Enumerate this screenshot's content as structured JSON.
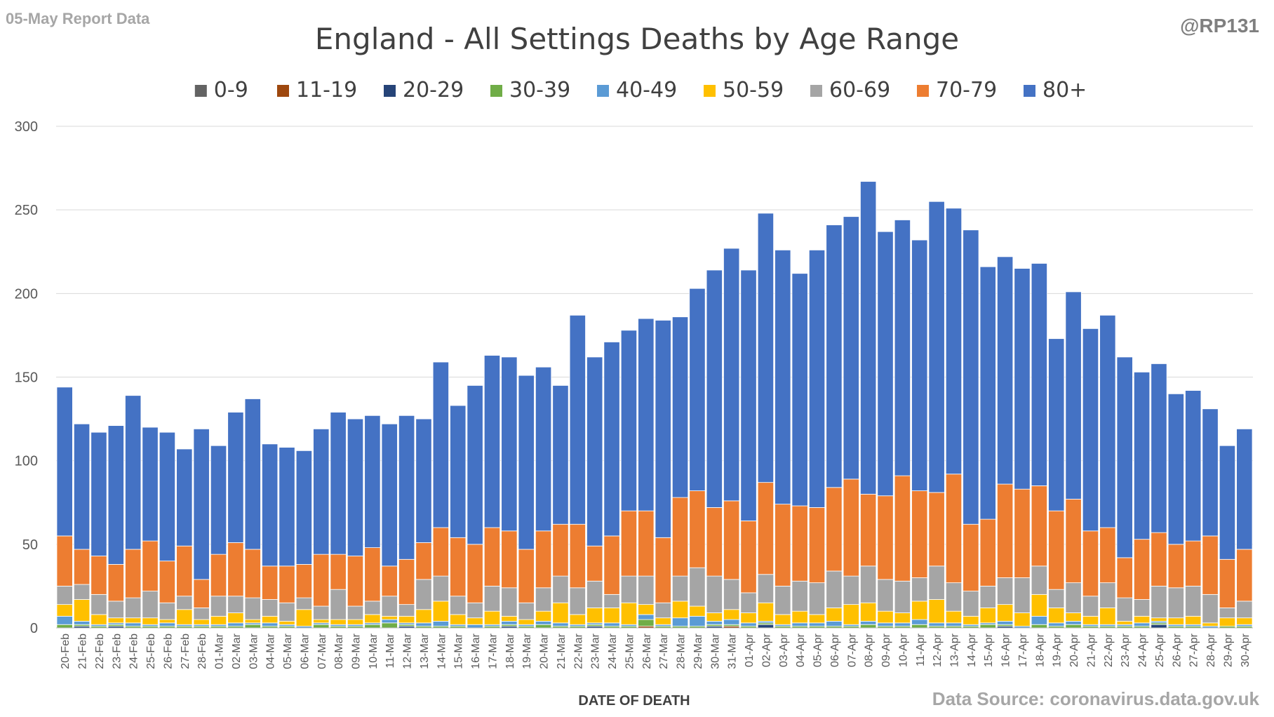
{
  "header": {
    "report_label": "05-May Report Data",
    "author_handle": "@RP131",
    "source": "Data Source: coronavirus.data.gov.uk"
  },
  "chart_data": {
    "type": "bar",
    "stacked": true,
    "title": "England - All Settings Deaths by Age Range",
    "xlabel": "DATE OF DEATH",
    "ylabel": "",
    "ylim": [
      0,
      300
    ],
    "yticks": [
      0,
      50,
      100,
      150,
      200,
      250,
      300
    ],
    "grid": true,
    "legend_position": "top",
    "categories": [
      "20-Feb",
      "21-Feb",
      "22-Feb",
      "23-Feb",
      "24-Feb",
      "25-Feb",
      "26-Feb",
      "27-Feb",
      "28-Feb",
      "01-Mar",
      "02-Mar",
      "03-Mar",
      "04-Mar",
      "05-Mar",
      "06-Mar",
      "07-Mar",
      "08-Mar",
      "09-Mar",
      "10-Mar",
      "11-Mar",
      "12-Mar",
      "13-Mar",
      "14-Mar",
      "15-Mar",
      "16-Mar",
      "17-Mar",
      "18-Mar",
      "19-Mar",
      "20-Mar",
      "21-Mar",
      "22-Mar",
      "23-Mar",
      "24-Mar",
      "25-Mar",
      "26-Mar",
      "27-Mar",
      "28-Mar",
      "29-Mar",
      "30-Mar",
      "31-Mar",
      "01-Apr",
      "02-Apr",
      "03-Apr",
      "04-Apr",
      "05-Apr",
      "06-Apr",
      "07-Apr",
      "08-Apr",
      "09-Apr",
      "10-Apr",
      "11-Apr",
      "12-Apr",
      "13-Apr",
      "14-Apr",
      "15-Apr",
      "16-Apr",
      "17-Apr",
      "18-Apr",
      "19-Apr",
      "20-Apr",
      "21-Apr",
      "22-Apr",
      "23-Apr",
      "24-Apr",
      "25-Apr",
      "26-Apr",
      "27-Apr",
      "28-Apr",
      "29-Apr",
      "30-Apr"
    ],
    "series": [
      {
        "name": "0-9",
        "color": "#636363",
        "values": [
          0,
          0,
          0,
          0,
          0,
          0,
          0,
          0,
          0,
          0,
          0,
          0,
          0,
          0,
          0,
          0,
          0,
          0,
          0,
          0,
          0,
          0,
          0,
          0,
          0,
          0,
          0,
          0,
          0,
          0,
          0,
          0,
          0,
          0,
          0,
          0,
          0,
          0,
          0,
          0,
          0,
          0,
          0,
          0,
          0,
          0,
          0,
          0,
          0,
          0,
          0,
          0,
          0,
          0,
          0,
          0,
          0,
          0,
          0,
          0,
          0,
          0,
          0,
          0,
          0,
          0,
          0,
          0,
          0,
          0
        ]
      },
      {
        "name": "11-19",
        "color": "#9E480E",
        "values": [
          0,
          0,
          0,
          0,
          0,
          0,
          0,
          0,
          0,
          0,
          0,
          0,
          0,
          0,
          0,
          0,
          0,
          0,
          0,
          0,
          0,
          0,
          0,
          0,
          0,
          0,
          0,
          0,
          0,
          0,
          0,
          0,
          0,
          0,
          1,
          0,
          0,
          0,
          0,
          1,
          0,
          0,
          0,
          0,
          0,
          0,
          0,
          0,
          0,
          0,
          0,
          0,
          0,
          0,
          0,
          0,
          0,
          0,
          0,
          0,
          0,
          0,
          0,
          0,
          0,
          0,
          0,
          0,
          0,
          0
        ]
      },
      {
        "name": "20-29",
        "color": "#264478",
        "values": [
          0,
          1,
          0,
          1,
          0,
          0,
          0,
          0,
          0,
          0,
          0,
          0,
          0,
          0,
          0,
          0,
          0,
          0,
          0,
          0,
          1,
          0,
          0,
          0,
          0,
          0,
          1,
          0,
          0,
          0,
          0,
          1,
          0,
          0,
          0,
          0,
          0,
          0,
          1,
          0,
          0,
          2,
          0,
          0,
          0,
          0,
          0,
          0,
          0,
          0,
          0,
          0,
          0,
          0,
          0,
          1,
          0,
          0,
          0,
          0,
          0,
          0,
          0,
          0,
          2,
          0,
          0,
          0,
          0,
          0
        ]
      },
      {
        "name": "30-39",
        "color": "#70AD47",
        "values": [
          2,
          1,
          1,
          1,
          1,
          1,
          1,
          1,
          1,
          1,
          1,
          2,
          1,
          1,
          0,
          2,
          1,
          1,
          2,
          3,
          1,
          1,
          1,
          1,
          0,
          1,
          1,
          1,
          2,
          1,
          1,
          1,
          1,
          1,
          4,
          1,
          1,
          1,
          1,
          1,
          1,
          1,
          1,
          1,
          1,
          1,
          1,
          2,
          1,
          1,
          2,
          1,
          1,
          1,
          2,
          1,
          0,
          2,
          1,
          2,
          1,
          1,
          1,
          1,
          1,
          1,
          1,
          0,
          1,
          1
        ]
      },
      {
        "name": "40-49",
        "color": "#5B9BD5",
        "values": [
          5,
          2,
          1,
          1,
          2,
          1,
          2,
          1,
          1,
          1,
          2,
          1,
          2,
          1,
          1,
          1,
          1,
          1,
          1,
          2,
          1,
          2,
          3,
          1,
          2,
          1,
          2,
          1,
          2,
          2,
          1,
          1,
          2,
          1,
          3,
          1,
          5,
          6,
          2,
          3,
          2,
          1,
          1,
          2,
          2,
          3,
          1,
          2,
          2,
          2,
          3,
          2,
          2,
          1,
          1,
          2,
          1,
          5,
          2,
          2,
          1,
          1,
          1,
          2,
          1,
          1,
          1,
          1,
          0,
          1
        ]
      },
      {
        "name": "50-59",
        "color": "#FFC000",
        "values": [
          7,
          13,
          6,
          3,
          3,
          4,
          2,
          9,
          3,
          5,
          6,
          2,
          4,
          2,
          10,
          2,
          3,
          3,
          5,
          2,
          4,
          8,
          12,
          6,
          4,
          8,
          3,
          3,
          6,
          12,
          6,
          9,
          9,
          13,
          6,
          4,
          10,
          6,
          5,
          6,
          6,
          11,
          6,
          7,
          5,
          8,
          12,
          11,
          7,
          6,
          11,
          14,
          7,
          5,
          9,
          10,
          8,
          13,
          9,
          5,
          5,
          10,
          2,
          4,
          2,
          4,
          5,
          2,
          5,
          4
        ]
      },
      {
        "name": "60-69",
        "color": "#A5A5A5",
        "values": [
          11,
          9,
          12,
          10,
          12,
          16,
          10,
          8,
          7,
          12,
          10,
          13,
          10,
          11,
          7,
          8,
          18,
          8,
          8,
          12,
          7,
          18,
          15,
          11,
          9,
          15,
          17,
          10,
          14,
          16,
          16,
          16,
          8,
          16,
          17,
          9,
          15,
          23,
          22,
          18,
          12,
          17,
          17,
          18,
          19,
          22,
          17,
          22,
          19,
          19,
          14,
          20,
          17,
          15,
          13,
          16,
          21,
          17,
          11,
          18,
          12,
          15,
          14,
          10,
          19,
          18,
          18,
          17,
          6,
          10
        ]
      },
      {
        "name": "70-79",
        "color": "#ED7D31",
        "values": [
          30,
          21,
          23,
          22,
          29,
          30,
          25,
          30,
          17,
          25,
          32,
          29,
          20,
          22,
          20,
          31,
          21,
          30,
          32,
          18,
          27,
          22,
          29,
          35,
          35,
          35,
          34,
          32,
          34,
          31,
          38,
          21,
          35,
          39,
          39,
          39,
          47,
          46,
          41,
          47,
          43,
          55,
          49,
          45,
          45,
          50,
          58,
          43,
          50,
          63,
          52,
          44,
          65,
          40,
          40,
          56,
          53,
          48,
          47,
          50,
          39,
          33,
          24,
          36,
          32,
          26,
          27,
          35,
          29,
          31
        ]
      },
      {
        "name": "80+",
        "color": "#4472C4",
        "values": [
          89,
          75,
          74,
          83,
          92,
          68,
          77,
          58,
          90,
          65,
          78,
          90,
          73,
          71,
          68,
          75,
          85,
          82,
          79,
          85,
          86,
          74,
          99,
          79,
          95,
          103,
          104,
          104,
          98,
          83,
          125,
          113,
          116,
          108,
          115,
          130,
          108,
          121,
          142,
          151,
          150,
          161,
          152,
          139,
          154,
          157,
          157,
          187,
          158,
          153,
          150,
          174,
          159,
          176,
          151,
          136,
          132,
          133,
          103,
          124,
          121,
          127,
          120,
          100,
          101,
          90,
          90,
          76,
          68,
          72
        ]
      }
    ]
  }
}
